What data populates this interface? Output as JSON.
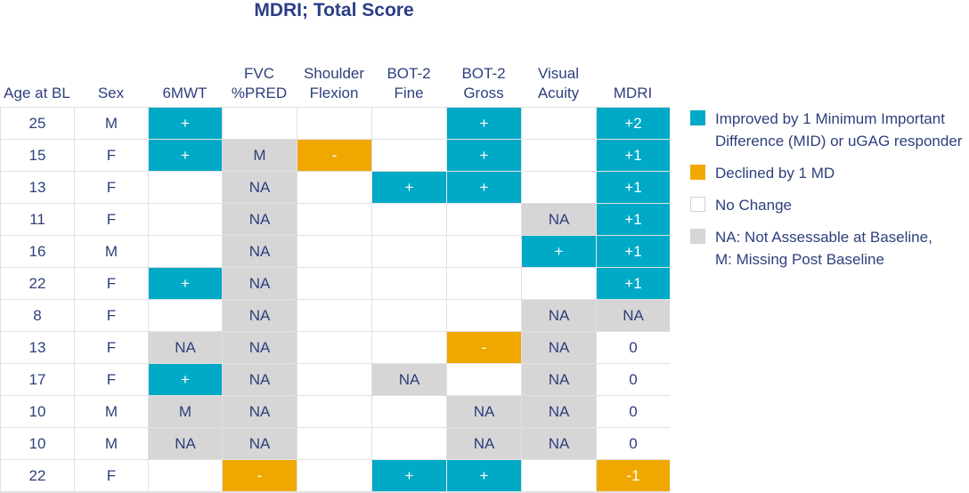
{
  "chart_data": {
    "type": "table",
    "title": "MDRI; Total Score",
    "columns": [
      "Age at BL",
      "Sex",
      "6MWT",
      "FVC\n%PRED",
      "Shoulder\nFlexion",
      "BOT-2\nFine",
      "BOT-2\nGross",
      "Visual\nAcuity",
      "MDRI"
    ],
    "rows": [
      {
        "age": "25",
        "sex": "M",
        "cells": [
          {
            "s": "imp",
            "t": "+"
          },
          {
            "s": "none",
            "t": ""
          },
          {
            "s": "none",
            "t": ""
          },
          {
            "s": "none",
            "t": ""
          },
          {
            "s": "imp",
            "t": "+"
          },
          {
            "s": "none",
            "t": ""
          },
          {
            "s": "imp",
            "t": "+2"
          }
        ]
      },
      {
        "age": "15",
        "sex": "F",
        "cells": [
          {
            "s": "imp",
            "t": "+"
          },
          {
            "s": "na",
            "t": "M"
          },
          {
            "s": "dec",
            "t": "-"
          },
          {
            "s": "none",
            "t": ""
          },
          {
            "s": "imp",
            "t": "+"
          },
          {
            "s": "none",
            "t": ""
          },
          {
            "s": "imp",
            "t": "+1"
          }
        ]
      },
      {
        "age": "13",
        "sex": "F",
        "cells": [
          {
            "s": "none",
            "t": ""
          },
          {
            "s": "na",
            "t": "NA"
          },
          {
            "s": "none",
            "t": ""
          },
          {
            "s": "imp",
            "t": "+"
          },
          {
            "s": "imp",
            "t": "+"
          },
          {
            "s": "none",
            "t": ""
          },
          {
            "s": "imp",
            "t": "+1"
          }
        ]
      },
      {
        "age": "11",
        "sex": "F",
        "cells": [
          {
            "s": "none",
            "t": ""
          },
          {
            "s": "na",
            "t": "NA"
          },
          {
            "s": "none",
            "t": ""
          },
          {
            "s": "none",
            "t": ""
          },
          {
            "s": "none",
            "t": ""
          },
          {
            "s": "na",
            "t": "NA"
          },
          {
            "s": "imp",
            "t": "+1"
          }
        ]
      },
      {
        "age": "16",
        "sex": "M",
        "cells": [
          {
            "s": "none",
            "t": ""
          },
          {
            "s": "na",
            "t": "NA"
          },
          {
            "s": "none",
            "t": ""
          },
          {
            "s": "none",
            "t": ""
          },
          {
            "s": "none",
            "t": ""
          },
          {
            "s": "imp",
            "t": "+"
          },
          {
            "s": "imp",
            "t": "+1"
          }
        ]
      },
      {
        "age": "22",
        "sex": "F",
        "cells": [
          {
            "s": "imp",
            "t": "+"
          },
          {
            "s": "na",
            "t": "NA"
          },
          {
            "s": "none",
            "t": ""
          },
          {
            "s": "none",
            "t": ""
          },
          {
            "s": "none",
            "t": ""
          },
          {
            "s": "none",
            "t": ""
          },
          {
            "s": "imp",
            "t": "+1"
          }
        ]
      },
      {
        "age": "8",
        "sex": "F",
        "cells": [
          {
            "s": "none",
            "t": ""
          },
          {
            "s": "na",
            "t": "NA"
          },
          {
            "s": "none",
            "t": ""
          },
          {
            "s": "none",
            "t": ""
          },
          {
            "s": "none",
            "t": ""
          },
          {
            "s": "na",
            "t": "NA"
          },
          {
            "s": "na",
            "t": "NA"
          }
        ]
      },
      {
        "age": "13",
        "sex": "F",
        "cells": [
          {
            "s": "na",
            "t": "NA"
          },
          {
            "s": "na",
            "t": "NA"
          },
          {
            "s": "none",
            "t": ""
          },
          {
            "s": "none",
            "t": ""
          },
          {
            "s": "dec",
            "t": "-"
          },
          {
            "s": "na",
            "t": "NA"
          },
          {
            "s": "none",
            "t": "0"
          }
        ]
      },
      {
        "age": "17",
        "sex": "F",
        "cells": [
          {
            "s": "imp",
            "t": "+"
          },
          {
            "s": "na",
            "t": "NA"
          },
          {
            "s": "none",
            "t": ""
          },
          {
            "s": "na",
            "t": "NA"
          },
          {
            "s": "none",
            "t": ""
          },
          {
            "s": "na",
            "t": "NA"
          },
          {
            "s": "none",
            "t": "0"
          }
        ]
      },
      {
        "age": "10",
        "sex": "M",
        "cells": [
          {
            "s": "na",
            "t": "M"
          },
          {
            "s": "na",
            "t": "NA"
          },
          {
            "s": "none",
            "t": ""
          },
          {
            "s": "none",
            "t": ""
          },
          {
            "s": "na",
            "t": "NA"
          },
          {
            "s": "na",
            "t": "NA"
          },
          {
            "s": "none",
            "t": "0"
          }
        ]
      },
      {
        "age": "10",
        "sex": "M",
        "cells": [
          {
            "s": "na",
            "t": "NA"
          },
          {
            "s": "na",
            "t": "NA"
          },
          {
            "s": "none",
            "t": ""
          },
          {
            "s": "none",
            "t": ""
          },
          {
            "s": "na",
            "t": "NA"
          },
          {
            "s": "na",
            "t": "NA"
          },
          {
            "s": "none",
            "t": "0"
          }
        ]
      },
      {
        "age": "22",
        "sex": "F",
        "cells": [
          {
            "s": "none",
            "t": ""
          },
          {
            "s": "dec",
            "t": "-"
          },
          {
            "s": "none",
            "t": ""
          },
          {
            "s": "imp",
            "t": "+"
          },
          {
            "s": "imp",
            "t": "+"
          },
          {
            "s": "none",
            "t": ""
          },
          {
            "s": "dec",
            "t": "-1"
          }
        ]
      }
    ],
    "legend": [
      {
        "status": "imp",
        "label": "Improved by 1 Minimum Important\nDifference (MID) or uGAG responder",
        "color": "#00a9c6"
      },
      {
        "status": "dec",
        "label": "Declined by 1 MD",
        "color": "#f0a800"
      },
      {
        "status": "none",
        "label": "No Change",
        "color": "#ffffff"
      },
      {
        "status": "na",
        "label": "NA: Not Assessable at Baseline,\nM: Missing Post Baseline",
        "color": "#d6d6d6"
      }
    ]
  }
}
